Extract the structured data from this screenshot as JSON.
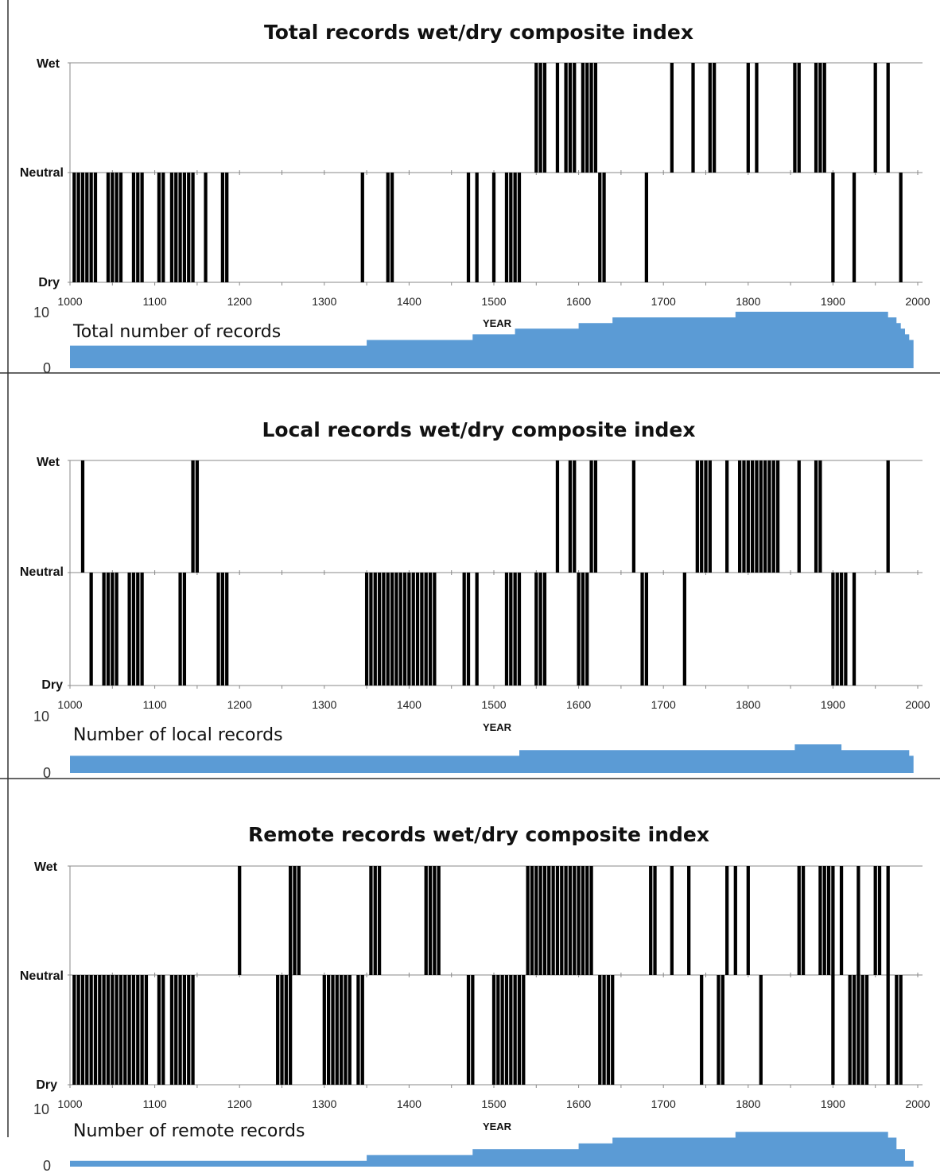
{
  "colors": {
    "bars": "#000000",
    "count_fill": "#5b9bd5",
    "axis": "#888888",
    "divider": "#333333"
  },
  "chart_data": [
    {
      "type": "bar",
      "title": "Total records wet/dry composite index",
      "xlabel": "YEAR",
      "y_categories": [
        "Wet",
        "Neutral",
        "Dry"
      ],
      "ylim": [
        -1,
        1
      ],
      "xlim": [
        1000,
        2000
      ],
      "x_ticks": [
        "1000",
        "1100",
        "1200",
        "1300",
        "1400",
        "1500",
        "1600",
        "1700",
        "1800",
        "1900",
        "2000"
      ],
      "bar_width_years": 4,
      "wet_years": [
        1550,
        1555,
        1560,
        1575,
        1585,
        1590,
        1595,
        1605,
        1610,
        1615,
        1620,
        1710,
        1735,
        1755,
        1760,
        1800,
        1810,
        1855,
        1860,
        1880,
        1885,
        1890,
        1950,
        1965
      ],
      "dry_years": [
        1005,
        1010,
        1015,
        1020,
        1025,
        1030,
        1045,
        1050,
        1055,
        1060,
        1075,
        1080,
        1085,
        1105,
        1110,
        1120,
        1125,
        1130,
        1135,
        1140,
        1145,
        1160,
        1180,
        1185,
        1345,
        1375,
        1380,
        1470,
        1480,
        1500,
        1515,
        1520,
        1525,
        1530,
        1625,
        1630,
        1680,
        1900,
        1925,
        1980
      ],
      "count_chart": {
        "type": "area",
        "label": "Total number of records",
        "ylim": [
          0,
          10
        ],
        "y_ticks": [
          "10",
          "0"
        ],
        "x": [
          1000,
          1350,
          1350,
          1475,
          1475,
          1525,
          1525,
          1600,
          1600,
          1640,
          1640,
          1785,
          1785,
          1965,
          1965,
          1975,
          1975,
          1980,
          1980,
          1985,
          1985,
          1990,
          1990,
          1995,
          1995
        ],
        "values": [
          4,
          4,
          5,
          5,
          6,
          6,
          7,
          7,
          8,
          8,
          9,
          9,
          10,
          10,
          9,
          9,
          8,
          8,
          7,
          7,
          6,
          6,
          5,
          5,
          0
        ]
      }
    },
    {
      "type": "bar",
      "title": "Local records wet/dry composite index",
      "xlabel": "YEAR",
      "y_categories": [
        "Wet",
        "Neutral",
        "Dry"
      ],
      "ylim": [
        -1,
        1
      ],
      "xlim": [
        1000,
        2000
      ],
      "x_ticks": [
        "1000",
        "1100",
        "1200",
        "1300",
        "1400",
        "1500",
        "1600",
        "1700",
        "1800",
        "1900",
        "2000"
      ],
      "bar_width_years": 4,
      "wet_years": [
        1015,
        1145,
        1150,
        1575,
        1590,
        1595,
        1615,
        1620,
        1665,
        1740,
        1745,
        1750,
        1755,
        1775,
        1790,
        1795,
        1800,
        1805,
        1810,
        1815,
        1820,
        1825,
        1830,
        1835,
        1860,
        1880,
        1885,
        1965
      ],
      "dry_years": [
        1025,
        1040,
        1045,
        1050,
        1055,
        1070,
        1075,
        1080,
        1085,
        1130,
        1135,
        1175,
        1180,
        1185,
        1350,
        1355,
        1360,
        1365,
        1370,
        1375,
        1380,
        1385,
        1390,
        1395,
        1400,
        1405,
        1410,
        1415,
        1420,
        1425,
        1430,
        1465,
        1470,
        1480,
        1515,
        1520,
        1525,
        1530,
        1550,
        1555,
        1560,
        1600,
        1605,
        1610,
        1675,
        1680,
        1725,
        1900,
        1905,
        1910,
        1915,
        1925
      ],
      "count_chart": {
        "type": "area",
        "label": "Number of local records",
        "ylim": [
          0,
          10
        ],
        "y_ticks": [
          "10",
          "0"
        ],
        "x": [
          1000,
          1530,
          1530,
          1855,
          1855,
          1910,
          1910,
          1990,
          1990,
          1995,
          1995
        ],
        "values": [
          3,
          3,
          4,
          4,
          5,
          5,
          4,
          4,
          3,
          3,
          0
        ]
      }
    },
    {
      "type": "bar",
      "title": "Remote records wet/dry composite index",
      "xlabel": "YEAR",
      "y_categories": [
        "Wet",
        "Neutral",
        "Dry"
      ],
      "ylim": [
        -1,
        1
      ],
      "xlim": [
        1000,
        2000
      ],
      "x_ticks": [
        "1000",
        "1100",
        "1200",
        "1300",
        "1400",
        "1500",
        "1600",
        "1700",
        "1800",
        "1900",
        "2000"
      ],
      "bar_width_years": 4,
      "wet_years": [
        1200,
        1260,
        1265,
        1270,
        1355,
        1360,
        1365,
        1420,
        1425,
        1430,
        1435,
        1540,
        1545,
        1550,
        1555,
        1560,
        1565,
        1570,
        1575,
        1580,
        1585,
        1590,
        1595,
        1600,
        1605,
        1610,
        1615,
        1685,
        1690,
        1710,
        1730,
        1775,
        1785,
        1800,
        1860,
        1865,
        1885,
        1890,
        1895,
        1900,
        1910,
        1930,
        1950,
        1955,
        1965
      ],
      "dry_years": [
        1005,
        1010,
        1015,
        1020,
        1025,
        1030,
        1035,
        1040,
        1045,
        1050,
        1055,
        1060,
        1065,
        1070,
        1075,
        1080,
        1085,
        1090,
        1105,
        1110,
        1120,
        1125,
        1130,
        1135,
        1140,
        1145,
        1245,
        1250,
        1255,
        1260,
        1300,
        1305,
        1310,
        1315,
        1320,
        1325,
        1330,
        1340,
        1345,
        1470,
        1475,
        1500,
        1505,
        1510,
        1515,
        1520,
        1525,
        1530,
        1535,
        1625,
        1630,
        1635,
        1640,
        1745,
        1765,
        1770,
        1815,
        1900,
        1920,
        1925,
        1930,
        1935,
        1940,
        1965,
        1975,
        1980
      ],
      "count_chart": {
        "type": "area",
        "label": "Number of remote records",
        "ylim": [
          0,
          10
        ],
        "y_ticks": [
          "10",
          "0"
        ],
        "x": [
          1000,
          1350,
          1350,
          1475,
          1475,
          1600,
          1600,
          1640,
          1640,
          1785,
          1785,
          1965,
          1965,
          1975,
          1975,
          1985,
          1985,
          1995,
          1995
        ],
        "values": [
          1,
          1,
          2,
          2,
          3,
          3,
          4,
          4,
          5,
          5,
          6,
          6,
          5,
          5,
          3,
          3,
          1,
          1,
          0
        ]
      }
    }
  ]
}
